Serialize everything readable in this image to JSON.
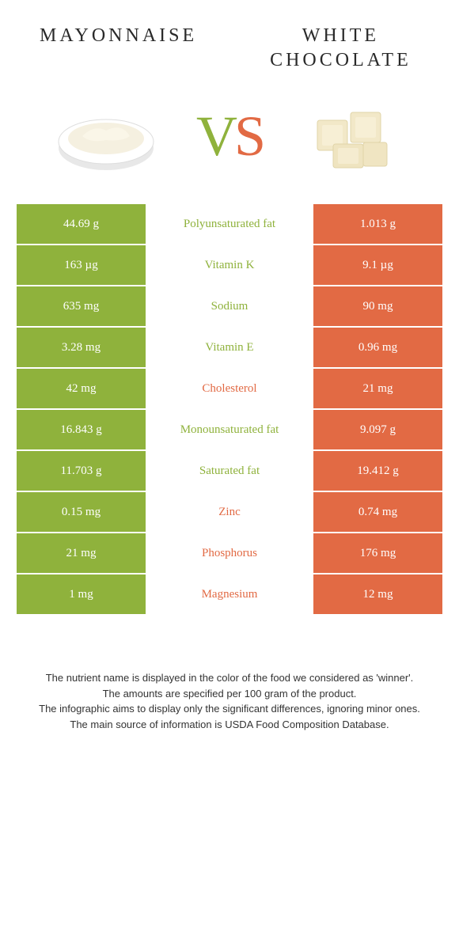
{
  "header": {
    "left_title": "MAYONNAISE",
    "right_title": "WHITE CHOCOLATE"
  },
  "vs": {
    "v": "V",
    "s": "S"
  },
  "colors": {
    "left": "#8fb23c",
    "right": "#e26a44",
    "left_saturated": "#a3c14f",
    "right_saturated": "#e67e5a"
  },
  "rows": [
    {
      "left": "44.69 g",
      "label": "Polyunsaturated fat",
      "right": "1.013 g",
      "winner": "left"
    },
    {
      "left": "163 µg",
      "label": "Vitamin K",
      "right": "9.1 µg",
      "winner": "left"
    },
    {
      "left": "635 mg",
      "label": "Sodium",
      "right": "90 mg",
      "winner": "left"
    },
    {
      "left": "3.28 mg",
      "label": "Vitamin E",
      "right": "0.96 mg",
      "winner": "left"
    },
    {
      "left": "42 mg",
      "label": "Cholesterol",
      "right": "21 mg",
      "winner": "right"
    },
    {
      "left": "16.843 g",
      "label": "Monounsaturated fat",
      "right": "9.097 g",
      "winner": "left"
    },
    {
      "left": "11.703 g",
      "label": "Saturated fat",
      "right": "19.412 g",
      "winner": "left"
    },
    {
      "left": "0.15 mg",
      "label": "Zinc",
      "right": "0.74 mg",
      "winner": "right"
    },
    {
      "left": "21 mg",
      "label": "Phosphorus",
      "right": "176 mg",
      "winner": "right"
    },
    {
      "left": "1 mg",
      "label": "Magnesium",
      "right": "12 mg",
      "winner": "right"
    }
  ],
  "footer": {
    "line1": "The nutrient name is displayed in the color of the food we considered as 'winner'.",
    "line2": "The amounts are specified per 100 gram of the product.",
    "line3": "The infographic aims to display only the significant differences, ignoring minor ones.",
    "line4": "The main source of information is USDA Food Composition Database."
  }
}
